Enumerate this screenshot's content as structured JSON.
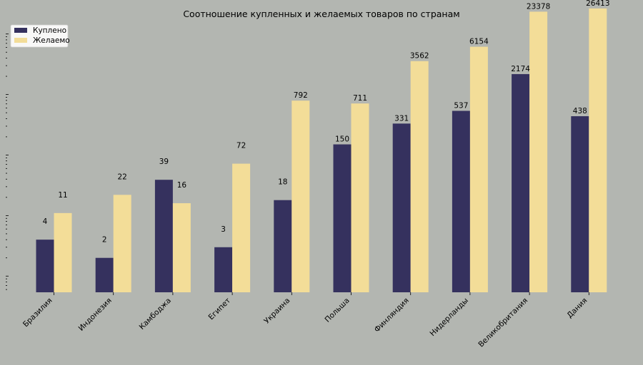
{
  "chart_data": {
    "type": "bar",
    "title": "Соотношение купленных и желаемых товаров по странам",
    "xlabel": "",
    "ylabel": "",
    "yscale": "log",
    "categories": [
      "Бразилия",
      "Индонезия",
      "Камбоджа",
      "Египет",
      "Украина",
      "Польша",
      "Финляндия",
      "Нидерланды",
      "Великобритания",
      "Дания"
    ],
    "series": [
      {
        "name": "Куплено",
        "color": "#35315e",
        "values": [
          4,
          2,
          39,
          3,
          18,
          150,
          331,
          537,
          2174,
          438
        ]
      },
      {
        "name": "Желаемо",
        "color": "#f3dd98",
        "values": [
          11,
          22,
          16,
          72,
          792,
          711,
          3562,
          6154,
          23378,
          26413
        ]
      }
    ],
    "legend": {
      "position": "top-left"
    },
    "grid": false
  }
}
